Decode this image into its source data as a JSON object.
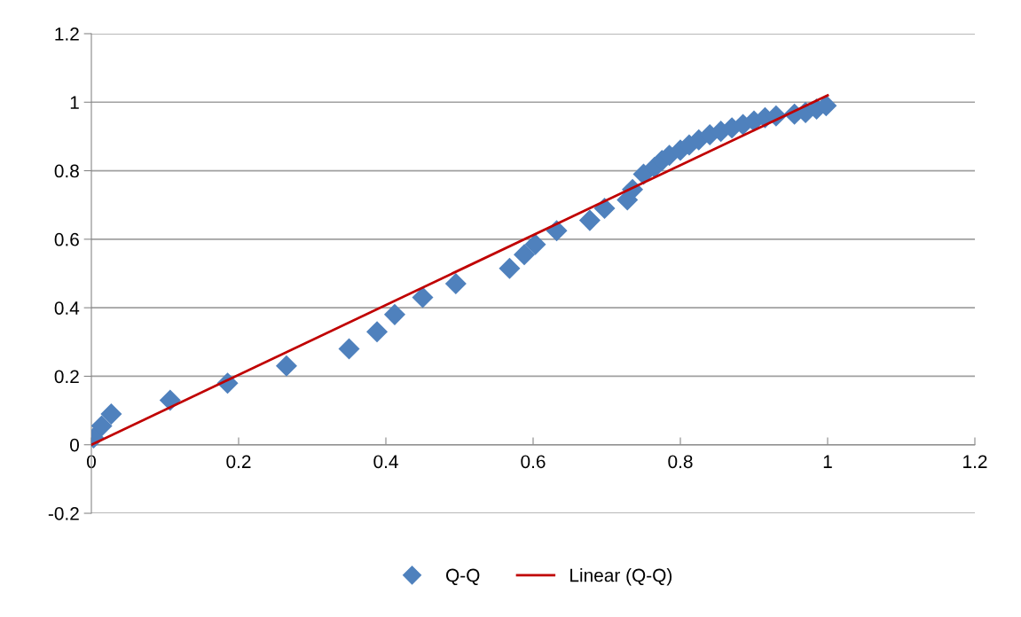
{
  "chart_data": {
    "type": "scatter",
    "xlim": [
      0,
      1.2
    ],
    "ylim": [
      -0.2,
      1.2
    ],
    "xticks": [
      0,
      0.2,
      0.4,
      0.6,
      0.8,
      1,
      1.2
    ],
    "yticks": [
      -0.2,
      0,
      0.2,
      0.4,
      0.6,
      0.8,
      1,
      1.2
    ],
    "grid": "y",
    "legend": "bottom",
    "marker": "diamond",
    "series": [
      {
        "name": "Q-Q",
        "color": "#4f81bd",
        "x": [
          0.003,
          0.014,
          0.027,
          0.107,
          0.185,
          0.265,
          0.35,
          0.388,
          0.412,
          0.45,
          0.495,
          0.568,
          0.588,
          0.603,
          0.632,
          0.677,
          0.697,
          0.728,
          0.735,
          0.75,
          0.765,
          0.775,
          0.785,
          0.8,
          0.812,
          0.825,
          0.84,
          0.855,
          0.87,
          0.885,
          0.9,
          0.915,
          0.93,
          0.955,
          0.97,
          0.985,
          0.998
        ],
        "values": [
          0.02,
          0.055,
          0.09,
          0.13,
          0.18,
          0.23,
          0.28,
          0.33,
          0.38,
          0.43,
          0.47,
          0.515,
          0.555,
          0.585,
          0.625,
          0.655,
          0.69,
          0.715,
          0.745,
          0.79,
          0.81,
          0.83,
          0.845,
          0.86,
          0.875,
          0.89,
          0.905,
          0.915,
          0.925,
          0.935,
          0.945,
          0.955,
          0.96,
          0.965,
          0.97,
          0.98,
          0.99
        ]
      },
      {
        "name": "Linear (Q-Q)",
        "type": "line",
        "color": "#c00000",
        "line_style": "solid",
        "marker": "none",
        "x": [
          0,
          1
        ],
        "values": [
          0.0,
          1.02
        ]
      }
    ]
  }
}
